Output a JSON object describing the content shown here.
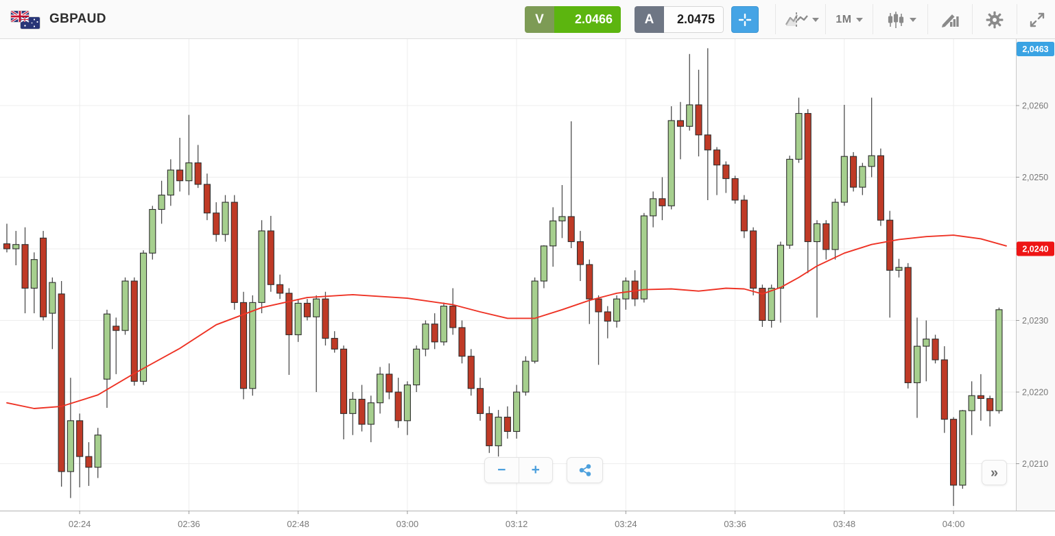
{
  "header": {
    "symbol": "GBPAUD",
    "instrument_flags": [
      "United Kingdom",
      "Australia"
    ],
    "sell": {
      "label": "V",
      "price": "2.0466",
      "tag_color": "#7d9b55",
      "value_color": "#5cb50f"
    },
    "buy": {
      "label": "A",
      "price": "2.0475",
      "tag_color": "#6e7684",
      "value_color": "#fdfdfd"
    },
    "timeframe": "1M",
    "icons": [
      "crosshair-icon",
      "compare-charts-icon",
      "timeframe-dropdown",
      "candlestick-type-icon",
      "draw-indicator-icon",
      "settings-gear-icon",
      "fullscreen-expand-icon"
    ]
  },
  "footer": {
    "zoom_out_label": "−",
    "zoom_in_label": "+",
    "share_icon": "share-icon",
    "scroll_latest_label": "»"
  },
  "chart_data": {
    "type": "candlestick",
    "title": "GBPAUD 1M candlestick chart",
    "interval": "1M",
    "start_time": "02:16",
    "interval_minutes": 1,
    "grid": true,
    "colors": {
      "up_fill": "#a6cf8e",
      "down_fill": "#bf3a26",
      "candle_stroke": "#2d2d2d",
      "wick": "#4c4c4c",
      "ma_line": "#ee3224",
      "grid": "#ededed",
      "axis_text": "#787878",
      "current_badge": "#3aa3e3",
      "ma_badge": "#ee1515"
    },
    "x_ticks": [
      {
        "label": "02:24",
        "index": 8
      },
      {
        "label": "02:36",
        "index": 20
      },
      {
        "label": "02:48",
        "index": 32
      },
      {
        "label": "03:00",
        "index": 44
      },
      {
        "label": "03:12",
        "index": 56
      },
      {
        "label": "03:24",
        "index": 68
      },
      {
        "label": "03:36",
        "index": 80
      },
      {
        "label": "03:48",
        "index": 92
      },
      {
        "label": "04:00",
        "index": 104
      }
    ],
    "y_ticks": [
      {
        "label": "2,0260",
        "price": 2.026
      },
      {
        "label": "2,0250",
        "price": 2.025
      },
      {
        "label": "2,0240",
        "price": 2.024
      },
      {
        "label": "2,0230",
        "price": 2.023
      },
      {
        "label": "2,0220",
        "price": 2.022
      },
      {
        "label": "2,0210",
        "price": 2.021
      }
    ],
    "badges": {
      "current_price": {
        "label": "2,0463",
        "clamped_to_top": true
      },
      "ma_price": {
        "label": "2,0240",
        "price": 2.024
      }
    },
    "ylim": [
      2.0203,
      2.027
    ],
    "candles_format": [
      "open",
      "high",
      "low",
      "close"
    ],
    "candles": [
      [
        2.02407,
        2.02435,
        2.02395,
        2.024
      ],
      [
        2.024,
        2.02425,
        2.02377,
        2.02406
      ],
      [
        2.02406,
        2.0243,
        2.0231,
        2.02345
      ],
      [
        2.02345,
        2.02395,
        2.0231,
        2.02385
      ],
      [
        2.02415,
        2.02425,
        2.023,
        2.02305
      ],
      [
        2.0231,
        2.0236,
        2.0226,
        2.02353
      ],
      [
        2.02337,
        2.02355,
        2.02068,
        2.02089
      ],
      [
        2.02089,
        2.0222,
        2.02052,
        2.0216
      ],
      [
        2.0216,
        2.0217,
        2.02067,
        2.0211
      ],
      [
        2.0211,
        2.0213,
        2.02069,
        2.02095
      ],
      [
        2.02095,
        2.0215,
        2.0208,
        2.0214
      ],
      [
        2.02218,
        2.02315,
        2.02178,
        2.02309
      ],
      [
        2.02292,
        2.02304,
        2.02225,
        2.02286
      ],
      [
        2.02286,
        2.0236,
        2.0228,
        2.02355
      ],
      [
        2.02355,
        2.0236,
        2.02209,
        2.02215
      ],
      [
        2.02215,
        2.02398,
        2.0221,
        2.02394
      ],
      [
        2.02394,
        2.0246,
        2.02385,
        2.02455
      ],
      [
        2.02455,
        2.02495,
        2.02435,
        2.02475
      ],
      [
        2.02475,
        2.02525,
        2.0246,
        2.0251
      ],
      [
        2.0251,
        2.02555,
        2.0248,
        2.02495
      ],
      [
        2.02495,
        2.02587,
        2.02475,
        2.0252
      ],
      [
        2.0252,
        2.02545,
        2.02485,
        2.0249
      ],
      [
        2.0249,
        2.02505,
        2.0244,
        2.0245
      ],
      [
        2.0245,
        2.02465,
        2.0241,
        2.0242
      ],
      [
        2.0242,
        2.02475,
        2.0241,
        2.02465
      ],
      [
        2.02465,
        2.02475,
        2.02315,
        2.02325
      ],
      [
        2.02325,
        2.0234,
        2.0219,
        2.02205
      ],
      [
        2.02205,
        2.02335,
        2.02195,
        2.02325
      ],
      [
        2.02325,
        2.0244,
        2.0231,
        2.02425
      ],
      [
        2.02425,
        2.02446,
        2.0234,
        2.0235
      ],
      [
        2.0235,
        2.02364,
        2.0233,
        2.02338
      ],
      [
        2.02338,
        2.02345,
        2.02224,
        2.0228
      ],
      [
        2.0228,
        2.0233,
        2.0227,
        2.02324
      ],
      [
        2.02324,
        2.0233,
        2.023,
        2.02305
      ],
      [
        2.02305,
        2.02335,
        2.022,
        2.0233
      ],
      [
        2.0233,
        2.0234,
        2.02265,
        2.02275
      ],
      [
        2.02275,
        2.02285,
        2.02255,
        2.0226
      ],
      [
        2.0226,
        2.02265,
        2.02134,
        2.0217
      ],
      [
        2.0217,
        2.022,
        2.0214,
        2.0219
      ],
      [
        2.0219,
        2.0221,
        2.02145,
        2.02155
      ],
      [
        2.02155,
        2.02195,
        2.0213,
        2.02185
      ],
      [
        2.02185,
        2.02235,
        2.0217,
        2.02225
      ],
      [
        2.02225,
        2.0224,
        2.0219,
        2.022
      ],
      [
        2.022,
        2.0222,
        2.0215,
        2.0216
      ],
      [
        2.0216,
        2.02215,
        2.0214,
        2.0221
      ],
      [
        2.0221,
        2.02265,
        2.022,
        2.0226
      ],
      [
        2.0226,
        2.023,
        2.0225,
        2.02295
      ],
      [
        2.02295,
        2.0231,
        2.0226,
        2.0227
      ],
      [
        2.0227,
        2.02325,
        2.02265,
        2.0232
      ],
      [
        2.0232,
        2.02345,
        2.0228,
        2.0229
      ],
      [
        2.0229,
        2.023,
        2.0224,
        2.0225
      ],
      [
        2.0225,
        2.0226,
        2.02195,
        2.02205
      ],
      [
        2.02205,
        2.0222,
        2.0216,
        2.0217
      ],
      [
        2.0217,
        2.0218,
        2.02115,
        2.02125
      ],
      [
        2.02125,
        2.02175,
        2.0211,
        2.02165
      ],
      [
        2.02165,
        2.0218,
        2.02135,
        2.02145
      ],
      [
        2.02145,
        2.0221,
        2.02135,
        2.022
      ],
      [
        2.022,
        2.0225,
        2.02195,
        2.02243
      ],
      [
        2.02243,
        2.0236,
        2.0224,
        2.02355
      ],
      [
        2.02355,
        2.02405,
        2.02345,
        2.02404
      ],
      [
        2.02404,
        2.02458,
        2.02375,
        2.02439
      ],
      [
        2.02439,
        2.02489,
        2.02415,
        2.02445
      ],
      [
        2.02445,
        2.02578,
        2.02401,
        2.0241
      ],
      [
        2.0241,
        2.02425,
        2.02355,
        2.02378
      ],
      [
        2.02378,
        2.02385,
        2.02295,
        2.0233
      ],
      [
        2.0233,
        2.02335,
        2.02238,
        2.02312
      ],
      [
        2.02312,
        2.0232,
        2.02275,
        2.02299
      ],
      [
        2.02299,
        2.02335,
        2.0229,
        2.0233
      ],
      [
        2.0233,
        2.0236,
        2.02315,
        2.02355
      ],
      [
        2.02355,
        2.0237,
        2.0232,
        2.0233
      ],
      [
        2.0233,
        2.0245,
        2.02325,
        2.02446
      ],
      [
        2.02446,
        2.0248,
        2.0243,
        2.0247
      ],
      [
        2.0247,
        2.025,
        2.0244,
        2.0246
      ],
      [
        2.0246,
        2.02599,
        2.02455,
        2.02579
      ],
      [
        2.02579,
        2.02605,
        2.02525,
        2.02571
      ],
      [
        2.02571,
        2.02672,
        2.02565,
        2.02601
      ],
      [
        2.02601,
        2.0265,
        2.02529,
        2.02559
      ],
      [
        2.02559,
        2.0268,
        2.02468,
        2.02538
      ],
      [
        2.02538,
        2.02542,
        2.02475,
        2.02517
      ],
      [
        2.02517,
        2.02522,
        2.02478,
        2.02498
      ],
      [
        2.02498,
        2.02502,
        2.02463,
        2.02468
      ],
      [
        2.02468,
        2.02475,
        2.02415,
        2.02425
      ],
      [
        2.02425,
        2.0243,
        2.02335,
        2.02345
      ],
      [
        2.02345,
        2.0235,
        2.02291,
        2.023
      ],
      [
        2.023,
        2.0235,
        2.0229,
        2.02345
      ],
      [
        2.02345,
        2.0241,
        2.02297,
        2.02405
      ],
      [
        2.02405,
        2.0253,
        2.024,
        2.02525
      ],
      [
        2.02525,
        2.02611,
        2.0252,
        2.02589
      ],
      [
        2.02589,
        2.02595,
        2.02366,
        2.0241
      ],
      [
        2.0241,
        2.0244,
        2.02304,
        2.02435
      ],
      [
        2.02435,
        2.0244,
        2.02385,
        2.02399
      ],
      [
        2.02399,
        2.0247,
        2.02385,
        2.02465
      ],
      [
        2.02465,
        2.02601,
        2.0246,
        2.02529
      ],
      [
        2.02529,
        2.02535,
        2.0248,
        2.02486
      ],
      [
        2.02486,
        2.0252,
        2.02475,
        2.02515
      ],
      [
        2.02515,
        2.02611,
        2.025,
        2.0253
      ],
      [
        2.0253,
        2.0254,
        2.02432,
        2.0244
      ],
      [
        2.0244,
        2.02453,
        2.02304,
        2.0237
      ],
      [
        2.0237,
        2.02386,
        2.0236,
        2.02374
      ],
      [
        2.02374,
        2.0238,
        2.02205,
        2.02213
      ],
      [
        2.02213,
        2.02304,
        2.02164,
        2.02264
      ],
      [
        2.02264,
        2.023,
        2.02215,
        2.02274
      ],
      [
        2.02274,
        2.0228,
        2.0224,
        2.02245
      ],
      [
        2.02245,
        2.02264,
        2.02143,
        2.02162
      ],
      [
        2.02162,
        2.02165,
        2.02041,
        2.0207
      ],
      [
        2.0207,
        2.02175,
        2.02065,
        2.02174
      ],
      [
        2.02174,
        2.02215,
        2.0214,
        2.02195
      ],
      [
        2.02195,
        2.02225,
        2.0216,
        2.02191
      ],
      [
        2.02191,
        2.02195,
        2.02152,
        2.02174
      ],
      [
        2.02174,
        2.02318,
        2.0217,
        2.02315
      ]
    ],
    "ma_line": {
      "name": "moving-average",
      "points_format": [
        "candle_index",
        "price"
      ],
      "points": [
        [
          0,
          2.02185
        ],
        [
          3,
          2.02177
        ],
        [
          6,
          2.0218
        ],
        [
          10,
          2.02196
        ],
        [
          14,
          2.02226
        ],
        [
          19,
          2.02261
        ],
        [
          23,
          2.02294
        ],
        [
          28,
          2.02318
        ],
        [
          33,
          2.02332
        ],
        [
          38,
          2.02336
        ],
        [
          44,
          2.02331
        ],
        [
          49,
          2.02322
        ],
        [
          52,
          2.02312
        ],
        [
          55,
          2.02303
        ],
        [
          58,
          2.02303
        ],
        [
          61,
          2.02315
        ],
        [
          64,
          2.02328
        ],
        [
          67,
          2.02338
        ],
        [
          70,
          2.02343
        ],
        [
          73,
          2.02344
        ],
        [
          76,
          2.02341
        ],
        [
          79,
          2.02345
        ],
        [
          81,
          2.02344
        ],
        [
          83,
          2.02337
        ],
        [
          85,
          2.02346
        ],
        [
          87,
          2.0236
        ],
        [
          89,
          2.02376
        ],
        [
          92,
          2.02394
        ],
        [
          95,
          2.02406
        ],
        [
          98,
          2.02413
        ],
        [
          101,
          2.02417
        ],
        [
          104,
          2.02419
        ],
        [
          107,
          2.02414
        ],
        [
          109.8,
          2.02404
        ]
      ]
    }
  }
}
